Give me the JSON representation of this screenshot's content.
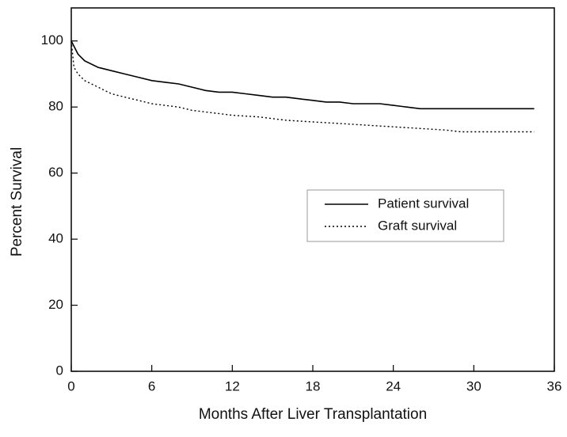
{
  "chart_data": {
    "type": "line",
    "xlabel": "Months After Liver Transplantation",
    "ylabel": "Percent Survival",
    "xlim": [
      0,
      36
    ],
    "xticks": [
      0,
      6,
      12,
      18,
      24,
      30,
      36
    ],
    "ylim": [
      0,
      110
    ],
    "yticks": [
      0,
      20,
      40,
      60,
      80,
      100
    ],
    "legend": "center-right",
    "series": [
      {
        "name": "Patient survival",
        "color": "#000000",
        "dash": "solid",
        "x": [
          0,
          0.5,
          1,
          2,
          3,
          4,
          5,
          6,
          7,
          8,
          9,
          10,
          11,
          12,
          13,
          14,
          15,
          16,
          17,
          18,
          19,
          20,
          21,
          22,
          23,
          24,
          25,
          26,
          28,
          30,
          34.5
        ],
        "values": [
          100,
          96,
          94,
          92,
          91,
          90,
          89,
          88,
          87.5,
          87,
          86,
          85,
          84.5,
          84.5,
          84,
          83.5,
          83,
          83,
          82.5,
          82,
          81.5,
          81.5,
          81,
          81,
          81,
          80.5,
          80,
          79.5,
          79.5,
          79.5,
          79.5
        ]
      },
      {
        "name": "Graft survival",
        "color": "#000000",
        "dash": "dotted",
        "x": [
          0,
          0.2,
          0.5,
          1,
          2,
          3,
          4,
          5,
          6,
          7,
          8,
          9,
          10,
          12,
          14,
          16,
          18,
          20,
          22,
          24,
          26,
          28,
          29,
          34.5
        ],
        "values": [
          100,
          92,
          90,
          88,
          86,
          84,
          83,
          82,
          81,
          80.5,
          80,
          79,
          78.5,
          77.5,
          77,
          76,
          75.5,
          75,
          74.5,
          74,
          73.5,
          73,
          72.5,
          72.5
        ]
      }
    ]
  }
}
